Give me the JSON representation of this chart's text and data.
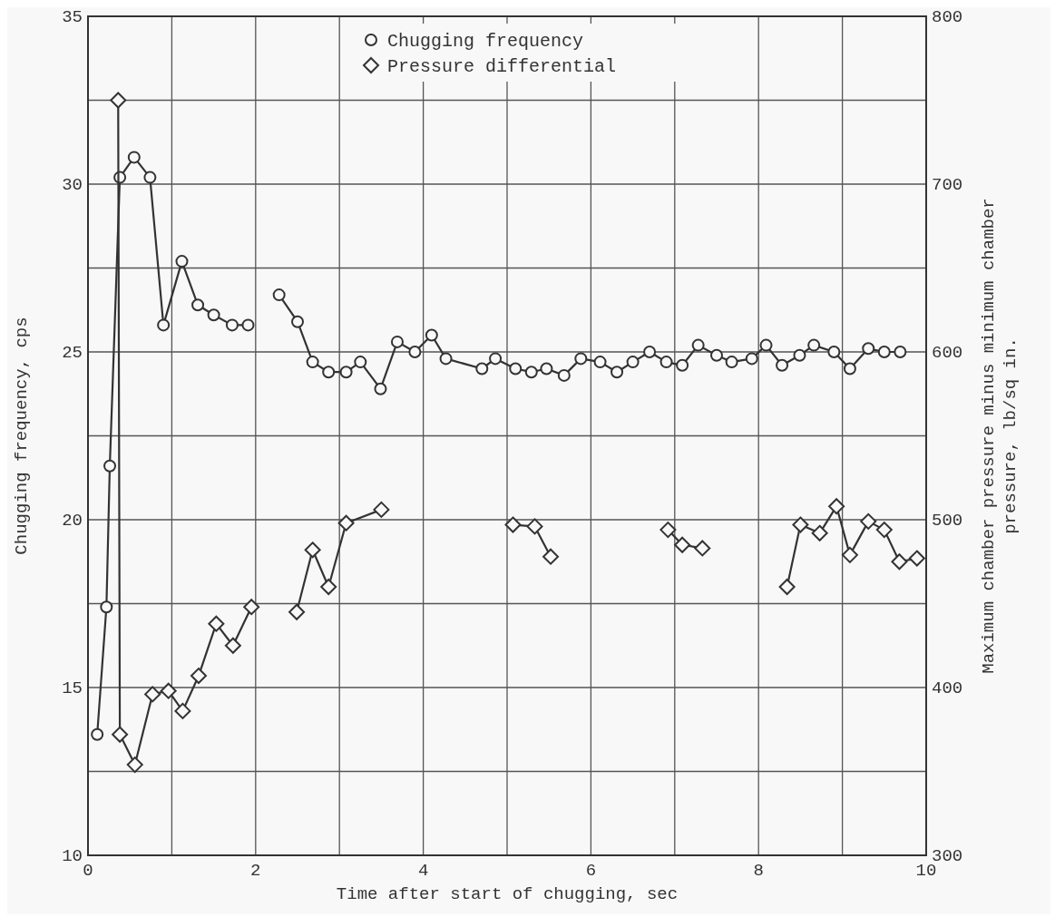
{
  "chart_data": {
    "type": "line",
    "xlabel": "Time after start of chugging, sec",
    "ylabel": "Chugging frequency, cps",
    "y2label": "Maximum chamber pressure minus minimum chamber\npressure, lb/sq in.",
    "xlim": [
      0,
      10
    ],
    "xticks": [
      0,
      {
        "value": 1,
        "label": null
      },
      2,
      {
        "value": 3,
        "label": null
      },
      4,
      {
        "value": 5,
        "label": null
      },
      6,
      {
        "value": 7,
        "label": null
      },
      8,
      {
        "value": 9,
        "label": null
      },
      10
    ],
    "ylim": [
      10,
      35
    ],
    "yticks": [
      10,
      {
        "value": 12.5,
        "label": null
      },
      15,
      {
        "value": 17.5,
        "label": null
      },
      20,
      {
        "value": 22.5,
        "label": null
      },
      25,
      {
        "value": 27.5,
        "label": null
      },
      30,
      {
        "value": 32.5,
        "label": null
      },
      35
    ],
    "y2lim": [
      300,
      800
    ],
    "y2ticks": [
      300,
      400,
      500,
      600,
      700,
      800
    ],
    "grid": true,
    "legend": "top",
    "series": [
      {
        "name": "Chugging frequency",
        "color": "#333333",
        "marker": "circle",
        "x": [
          0.11,
          0.22,
          0.26,
          0.38,
          0.55,
          0.74,
          0.9,
          1.12,
          1.31,
          1.5,
          1.72,
          1.91,
          2.1,
          2.28,
          2.5,
          2.68,
          2.87,
          3.08,
          3.25,
          3.49,
          3.69,
          3.9,
          4.1,
          4.27,
          4.7,
          4.86,
          5.1,
          5.29,
          5.47,
          5.68,
          5.88,
          6.11,
          6.31,
          6.5,
          6.7,
          6.9,
          7.09,
          7.28,
          7.5,
          7.68,
          7.92,
          8.09,
          8.28,
          8.49,
          8.66,
          8.9,
          9.09,
          9.31,
          9.5,
          9.69
        ],
        "values": [
          13.6,
          17.4,
          21.6,
          30.2,
          30.8,
          30.2,
          25.8,
          27.7,
          26.4,
          26.1,
          25.8,
          25.8,
          null,
          26.7,
          25.9,
          24.7,
          24.4,
          24.4,
          24.7,
          23.9,
          25.3,
          25.0,
          25.5,
          24.8,
          24.5,
          24.8,
          24.5,
          24.4,
          24.5,
          24.3,
          24.8,
          24.7,
          24.4,
          24.7,
          25.0,
          24.7,
          24.6,
          25.2,
          24.9,
          24.7,
          24.8,
          25.2,
          24.6,
          24.9,
          25.2,
          25.0,
          24.5,
          25.1,
          25.0,
          25.0
        ]
      },
      {
        "name": "Pressure differential",
        "color": "#333333",
        "marker": "diamond",
        "axis": "y2",
        "x": [
          0.36,
          0.38,
          0.56,
          0.77,
          0.96,
          1.13,
          1.32,
          1.53,
          1.73,
          1.95,
          2.2,
          2.49,
          2.68,
          2.87,
          3.08,
          3.5,
          4.3,
          5.07,
          5.33,
          5.52,
          6.2,
          6.92,
          7.09,
          7.33,
          7.8,
          8.34,
          8.5,
          8.73,
          8.93,
          9.09,
          9.31,
          9.5,
          9.68,
          9.89
        ],
        "values": [
          750,
          372,
          354,
          396,
          398,
          386,
          407,
          438,
          425,
          448,
          null,
          445,
          482,
          460,
          498,
          506,
          null,
          497,
          496,
          478,
          null,
          494,
          485,
          483,
          null,
          460,
          497,
          492,
          508,
          479,
          499,
          494,
          475,
          477
        ]
      }
    ]
  }
}
